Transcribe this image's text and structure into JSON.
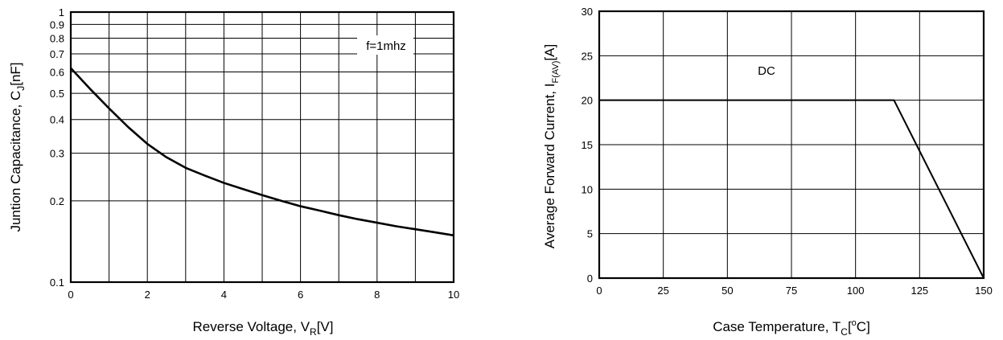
{
  "chart_data": [
    {
      "type": "line",
      "ylabel": {
        "main": "Juntion Capacitance, C",
        "sub": "J",
        "post": "[nF]"
      },
      "xlabel": {
        "main": "Reverse Voltage, V",
        "sub": "R",
        "post": "[V]"
      },
      "xlim": [
        0,
        10
      ],
      "ylim": [
        0.1,
        1
      ],
      "yscale": "log",
      "grid": true,
      "xticks": [
        0,
        2,
        4,
        6,
        8,
        10
      ],
      "xtick_labels": [
        "0",
        "2",
        "4",
        "6",
        "8",
        "10"
      ],
      "xgrid": [
        0,
        1,
        2,
        3,
        4,
        5,
        6,
        7,
        8,
        9,
        10
      ],
      "yticks": [
        0.1,
        0.2,
        0.3,
        0.4,
        0.5,
        0.6,
        0.7,
        0.8,
        0.9,
        1
      ],
      "ytick_labels": [
        "0.1",
        "0.2",
        "0.3",
        "0.4",
        "0.5",
        "0.6",
        "0.7",
        "0.8",
        "0.9",
        "1"
      ],
      "annotation": "f=1mhz",
      "series": [
        {
          "x": [
            0,
            0.5,
            1,
            1.5,
            2,
            2.5,
            3,
            3.5,
            4,
            4.5,
            5,
            5.5,
            6,
            6.5,
            7,
            7.5,
            8,
            8.5,
            9,
            9.5,
            10
          ],
          "y": [
            0.62,
            0.52,
            0.44,
            0.375,
            0.325,
            0.29,
            0.265,
            0.248,
            0.233,
            0.221,
            0.21,
            0.2,
            0.191,
            0.184,
            0.177,
            0.171,
            0.166,
            0.161,
            0.157,
            0.153,
            0.149
          ]
        }
      ]
    },
    {
      "type": "line",
      "ylabel": {
        "main": "Average Forward Current, I",
        "sub": "F(AV)",
        "post": "[A]"
      },
      "xlabel": {
        "main": "Case Temperature, T",
        "sub": "C",
        "sup": "o",
        "post": "C]",
        "pre_sup": "["
      },
      "xlim": [
        0,
        150
      ],
      "ylim": [
        0,
        30
      ],
      "grid": true,
      "xticks": [
        0,
        25,
        50,
        75,
        100,
        125,
        150
      ],
      "xtick_labels": [
        "0",
        "25",
        "50",
        "75",
        "100",
        "125",
        "150"
      ],
      "xgrid": [
        0,
        25,
        50,
        75,
        100,
        125,
        150
      ],
      "yticks": [
        0,
        5,
        10,
        15,
        20,
        25,
        30
      ],
      "ytick_labels": [
        "0",
        "5",
        "10",
        "15",
        "20",
        "25",
        "30"
      ],
      "annotation": "DC",
      "series": [
        {
          "x": [
            0,
            115,
            150
          ],
          "y": [
            20,
            20,
            0
          ]
        }
      ]
    }
  ]
}
